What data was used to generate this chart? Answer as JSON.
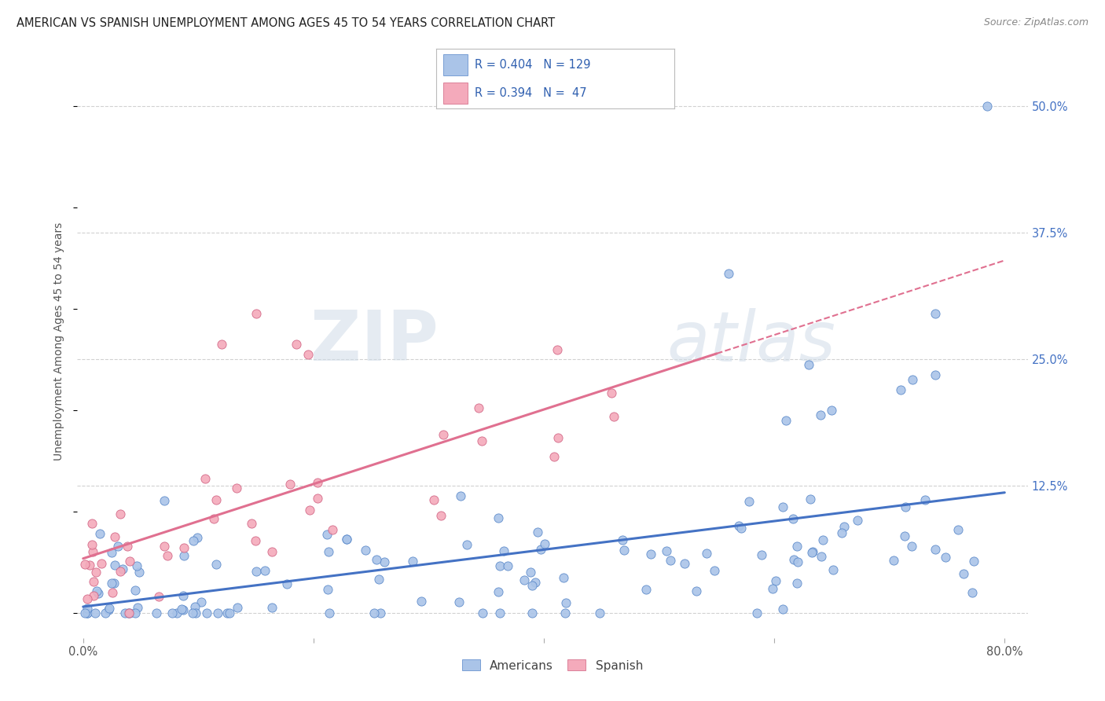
{
  "title": "AMERICAN VS SPANISH UNEMPLOYMENT AMONG AGES 45 TO 54 YEARS CORRELATION CHART",
  "source": "Source: ZipAtlas.com",
  "ylabel": "Unemployment Among Ages 45 to 54 years",
  "xlim": [
    -0.005,
    0.82
  ],
  "ylim": [
    -0.025,
    0.56
  ],
  "xticks": [
    0.0,
    0.2,
    0.4,
    0.6,
    0.8
  ],
  "xticklabels": [
    "0.0%",
    "",
    "",
    "",
    "80.0%"
  ],
  "ytick_labels_right": [
    "",
    "12.5%",
    "25.0%",
    "37.5%",
    "50.0%"
  ],
  "ytick_vals_right": [
    0.0,
    0.125,
    0.25,
    0.375,
    0.5
  ],
  "american_color": "#aac4e8",
  "spanish_color": "#f4aabb",
  "american_edge_color": "#5585c8",
  "spanish_edge_color": "#d06080",
  "trend_american_color": "#4472c4",
  "trend_spanish_color": "#e07090",
  "background_color": "#ffffff",
  "grid_color": "#cccccc",
  "watermark_zip": "ZIP",
  "watermark_atlas": "atlas",
  "title_fontsize": 10.5,
  "axis_label_fontsize": 10,
  "tick_fontsize": 10.5,
  "right_tick_color": "#4472c4"
}
